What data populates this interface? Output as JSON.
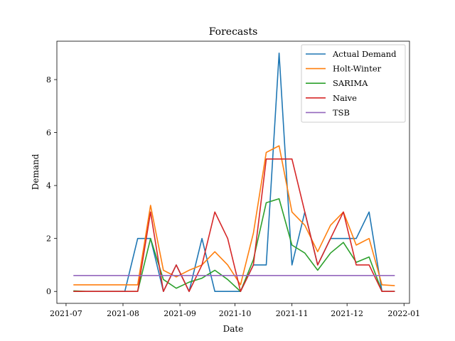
{
  "chart_data": {
    "type": "line",
    "title": "Forecasts",
    "xlabel": "Date",
    "ylabel": "Demand",
    "x_dates": [
      "2021-07-05",
      "2021-07-12",
      "2021-07-19",
      "2021-07-26",
      "2021-08-02",
      "2021-08-09",
      "2021-08-16",
      "2021-08-23",
      "2021-08-30",
      "2021-09-06",
      "2021-09-13",
      "2021-09-20",
      "2021-09-27",
      "2021-10-04",
      "2021-10-11",
      "2021-10-18",
      "2021-10-25",
      "2021-11-01",
      "2021-11-08",
      "2021-11-15",
      "2021-11-22",
      "2021-11-29",
      "2021-12-06",
      "2021-12-13",
      "2021-12-20",
      "2021-12-27"
    ],
    "xlim": [
      "2021-06-26",
      "2022-01-04"
    ],
    "ylim": [
      -0.45,
      9.45
    ],
    "x_ticks": [
      {
        "date": "2021-07-01",
        "label": "2021-07"
      },
      {
        "date": "2021-08-01",
        "label": "2021-08"
      },
      {
        "date": "2021-09-01",
        "label": "2021-09"
      },
      {
        "date": "2021-10-01",
        "label": "2021-10"
      },
      {
        "date": "2021-11-01",
        "label": "2021-11"
      },
      {
        "date": "2021-12-01",
        "label": "2021-12"
      },
      {
        "date": "2022-01-01",
        "label": "2022-01"
      }
    ],
    "y_ticks": [
      0,
      2,
      4,
      6,
      8
    ],
    "grid": false,
    "legend_position": "top-right",
    "series": [
      {
        "name": "Actual Demand",
        "color": "#1f77b4",
        "values": [
          0,
          0,
          0,
          0,
          0,
          2,
          2,
          0,
          1,
          0,
          2,
          0,
          0,
          0,
          1,
          1,
          9,
          1,
          3,
          1,
          2,
          2,
          2,
          3,
          0,
          0
        ]
      },
      {
        "name": "Holt-Winter",
        "color": "#ff7f0e",
        "values": [
          0.25,
          0.25,
          0.25,
          0.25,
          0.25,
          0.25,
          3.25,
          0.8,
          0.55,
          0.8,
          1.0,
          1.5,
          1.0,
          0.25,
          2.2,
          5.25,
          5.5,
          3.0,
          2.5,
          1.5,
          2.5,
          3.0,
          1.75,
          2.0,
          0.25,
          0.22
        ]
      },
      {
        "name": "SARIMA",
        "color": "#2ca02c",
        "values": [
          0.02,
          0.0,
          0.0,
          0.0,
          0.0,
          0.0,
          2.0,
          0.45,
          0.12,
          0.35,
          0.5,
          0.8,
          0.45,
          0.0,
          1.2,
          3.35,
          3.5,
          1.75,
          1.45,
          0.8,
          1.45,
          1.85,
          1.1,
          1.3,
          0.0,
          0.0
        ]
      },
      {
        "name": "Naive",
        "color": "#d62728",
        "values": [
          0,
          0,
          0,
          0,
          0,
          0,
          3,
          0,
          1,
          0,
          1,
          3,
          2,
          0,
          1,
          5,
          5,
          5,
          3,
          1,
          2,
          3,
          1,
          1,
          0,
          0
        ]
      },
      {
        "name": "TSB",
        "color": "#9467bd",
        "values": [
          0.6,
          0.6,
          0.6,
          0.6,
          0.6,
          0.6,
          0.6,
          0.6,
          0.6,
          0.6,
          0.6,
          0.6,
          0.6,
          0.6,
          0.6,
          0.6,
          0.6,
          0.6,
          0.6,
          0.6,
          0.6,
          0.6,
          0.6,
          0.6,
          0.6,
          0.6
        ]
      }
    ]
  }
}
